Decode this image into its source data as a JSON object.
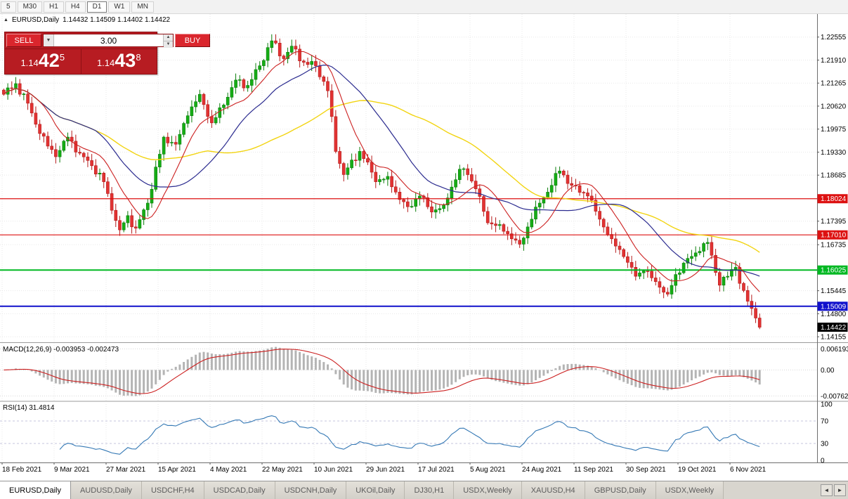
{
  "toolbar": {
    "timeframes": [
      {
        "label": "5"
      },
      {
        "label": "M30"
      },
      {
        "label": "H1"
      },
      {
        "label": "H4"
      },
      {
        "label": "D1",
        "active": true
      },
      {
        "label": "W1"
      },
      {
        "label": "MN"
      }
    ]
  },
  "icons": {
    "collapse": "▲",
    "dropdown": "▼",
    "spin_up": "▲",
    "spin_down": "▼",
    "tab_prev": "◄",
    "tab_next": "►"
  },
  "chart": {
    "header": {
      "symbol": "EURUSD,Daily",
      "ohlc": "1.14432 1.14509 1.14402 1.14422"
    },
    "trade_panel": {
      "sell_label": "SELL",
      "buy_label": "BUY",
      "volume": "3.00",
      "bid": {
        "prefix": "1.14",
        "big": "42",
        "sup": "5"
      },
      "ask": {
        "prefix": "1.14",
        "big": "43",
        "sup": "8"
      }
    }
  },
  "chart_data": {
    "type": "candlestick",
    "symbol": "EURUSD",
    "timeframe": "Daily",
    "last_ohlc": {
      "open": 1.14432,
      "high": 1.14509,
      "low": 1.14402,
      "close": 1.14422
    },
    "price_axis": {
      "min": 1.14,
      "max": 1.232,
      "ticks": [
        "1.22555",
        "1.21910",
        "1.21265",
        "1.20620",
        "1.19975",
        "1.19330",
        "1.18685",
        "1.17395",
        "1.16735",
        "1.15445",
        "1.14800",
        "1.14155"
      ]
    },
    "hlines": [
      {
        "price": 1.18024,
        "label": "1.18024",
        "color": "#dd1111",
        "width": 1.2
      },
      {
        "price": 1.1701,
        "label": "1.17010",
        "color": "#dd1111",
        "width": 1.2
      },
      {
        "price": 1.16025,
        "label": "1.16025",
        "color": "#00b822",
        "width": 2
      },
      {
        "price": 1.15009,
        "label": "1.15009",
        "color": "#1111cc",
        "width": 2
      }
    ],
    "current_price": {
      "price": 1.14422,
      "label": "1.14422",
      "color": "#000000"
    },
    "colors": {
      "up": "#15ad15",
      "up_border": "#0a7d0a",
      "down": "#e23333",
      "down_border": "#b51a1a",
      "grid": "#e8e8e8",
      "axis_line": "#6e6e6e"
    },
    "candles": {
      "count": 190,
      "anchors": [
        [
          0,
          1.2095
        ],
        [
          3,
          1.2125
        ],
        [
          6,
          1.207
        ],
        [
          9,
          1.1985
        ],
        [
          13,
          1.192
        ],
        [
          16,
          1.1975
        ],
        [
          19,
          1.193
        ],
        [
          22,
          1.1895
        ],
        [
          25,
          1.185
        ],
        [
          27,
          1.177
        ],
        [
          29,
          1.1715
        ],
        [
          31,
          1.1755
        ],
        [
          33,
          1.172
        ],
        [
          36,
          1.179
        ],
        [
          40,
          1.1975
        ],
        [
          43,
          1.1955
        ],
        [
          46,
          1.2035
        ],
        [
          49,
          1.2095
        ],
        [
          52,
          1.2015
        ],
        [
          55,
          1.2065
        ],
        [
          58,
          1.2135
        ],
        [
          61,
          1.212
        ],
        [
          64,
          1.2175
        ],
        [
          67,
          1.2245
        ],
        [
          70,
          1.2195
        ],
        [
          72,
          1.223
        ],
        [
          75,
          1.2185
        ],
        [
          78,
          1.2175
        ],
        [
          81,
          1.2105
        ],
        [
          83,
          1.1935
        ],
        [
          85,
          1.187
        ],
        [
          89,
          1.1935
        ],
        [
          91,
          1.1905
        ],
        [
          93,
          1.185
        ],
        [
          96,
          1.1865
        ],
        [
          99,
          1.18
        ],
        [
          101,
          1.178
        ],
        [
          104,
          1.181
        ],
        [
          107,
          1.1765
        ],
        [
          110,
          1.1785
        ],
        [
          114,
          1.1885
        ],
        [
          116,
          1.187
        ],
        [
          118,
          1.183
        ],
        [
          121,
          1.1735
        ],
        [
          124,
          1.173
        ],
        [
          127,
          1.169
        ],
        [
          129,
          1.1675
        ],
        [
          132,
          1.1745
        ],
        [
          134,
          1.179
        ],
        [
          137,
          1.184
        ],
        [
          139,
          1.188
        ],
        [
          142,
          1.184
        ],
        [
          146,
          1.181
        ],
        [
          149,
          1.1745
        ],
        [
          152,
          1.169
        ],
        [
          155,
          1.164
        ],
        [
          158,
          1.1585
        ],
        [
          160,
          1.16
        ],
        [
          163,
          1.157
        ],
        [
          166,
          1.1535
        ],
        [
          168,
          1.159
        ],
        [
          171,
          1.1635
        ],
        [
          174,
          1.1655
        ],
        [
          176,
          1.168
        ],
        [
          179,
          1.156
        ],
        [
          181,
          1.1585
        ],
        [
          183,
          1.161
        ],
        [
          184,
          1.1565
        ],
        [
          186,
          1.1515
        ],
        [
          188,
          1.1468
        ],
        [
          189,
          1.14422
        ]
      ]
    },
    "moving_averages": [
      {
        "period": 52,
        "color": "#f2d411",
        "width": 1.4
      },
      {
        "period": 24,
        "color": "#2b2b8f",
        "width": 1.2
      },
      {
        "period": 10,
        "color": "#cc2020",
        "width": 1.1
      }
    ],
    "macd": {
      "name": "MACD(12,26,9)",
      "values": "-0.003953 -0.002473",
      "fast": 12,
      "slow": 26,
      "signal_period": 9,
      "axis": {
        "max": 0.0075,
        "min": -0.009
      },
      "ticks": [
        {
          "v": 0.006193,
          "label": "0.006193"
        },
        {
          "v": 0,
          "label": "0.00"
        },
        {
          "v": -0.007621,
          "label": "-0.007621"
        }
      ],
      "hist_color": "#b4b4b4",
      "signal_color": "#cc2020"
    },
    "rsi": {
      "name": "RSI(14)",
      "values": "31.4814",
      "period": 14,
      "levels": [
        70,
        30
      ],
      "ticks": [
        {
          "v": 100,
          "label": "100"
        },
        {
          "v": 70,
          "label": "70"
        },
        {
          "v": 30,
          "label": "30"
        },
        {
          "v": 0,
          "label": "0"
        }
      ],
      "color": "#3579b5",
      "level_color": "#c4c4dd"
    },
    "date_axis": {
      "step_candles": 13,
      "labels": [
        "18 Feb 2021",
        "9 Mar 2021",
        "27 Mar 2021",
        "15 Apr 2021",
        "4 May 2021",
        "22 May 2021",
        "10 Jun 2021",
        "29 Jun 2021",
        "17 Jul 2021",
        "5 Aug 2021",
        "24 Aug 2021",
        "11 Sep 2021",
        "30 Sep 2021",
        "19 Oct 2021",
        "6 Nov 2021"
      ]
    }
  },
  "tabs": {
    "items": [
      {
        "label": "EURUSD,Daily",
        "active": true
      },
      {
        "label": "AUDUSD,Daily"
      },
      {
        "label": "USDCHF,H4"
      },
      {
        "label": "USDCAD,Daily"
      },
      {
        "label": "USDCNH,Daily"
      },
      {
        "label": "UKOil,Daily"
      },
      {
        "label": "DJ30,H1"
      },
      {
        "label": "USDX,Weekly"
      },
      {
        "label": "XAUUSD,H4"
      },
      {
        "label": "GBPUSD,Daily"
      },
      {
        "label": "USDX,Weekly"
      }
    ]
  }
}
